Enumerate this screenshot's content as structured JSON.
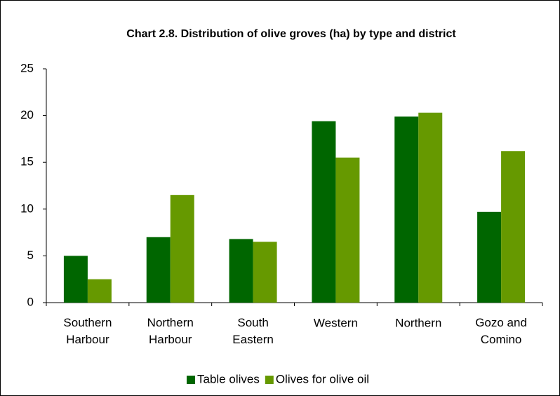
{
  "chart_data": {
    "type": "bar",
    "title": "Chart 2.8. Distribution of olive groves (ha) by type and district",
    "categories": [
      "Southern Harbour",
      "Northern Harbour",
      "South Eastern",
      "Western",
      "Northern",
      "Gozo and Comino"
    ],
    "series": [
      {
        "name": "Table olives",
        "color": "#006600",
        "values": [
          5.0,
          7.0,
          6.8,
          19.4,
          19.9,
          9.7
        ]
      },
      {
        "name": "Olives for olive oil",
        "color": "#669900",
        "values": [
          2.5,
          11.5,
          6.5,
          15.5,
          20.3,
          16.2
        ]
      }
    ],
    "ylim": [
      0,
      25
    ],
    "yticks": [
      0,
      5,
      10,
      15,
      20,
      25
    ],
    "grid": false,
    "legend": "bottom"
  }
}
